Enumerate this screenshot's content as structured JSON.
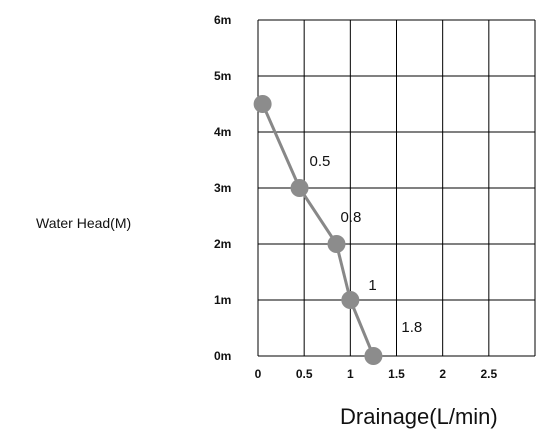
{
  "chart_data": {
    "type": "line",
    "title": "",
    "xlabel": "Drainage(L/min)",
    "ylabel": "Water Head(M)",
    "xlim": [
      0,
      3
    ],
    "ylim": [
      0,
      6
    ],
    "x_ticks": [
      "0",
      "0.5",
      "1",
      "1.5",
      "2",
      "2.5"
    ],
    "y_ticks": [
      "0m",
      "1m",
      "2m",
      "3m",
      "4m",
      "5m",
      "6m"
    ],
    "grid": true,
    "colors": {
      "line": "#888888",
      "marker": "#8c8c8c",
      "grid": "#000000"
    },
    "series": [
      {
        "x": [
          0.05,
          0.45,
          0.85,
          1.0,
          1.25
        ],
        "y": [
          4.5,
          3.0,
          2.0,
          1.0,
          0.0
        ]
      }
    ],
    "point_labels": [
      "",
      "0.5",
      "0.8",
      "1",
      "1.8"
    ]
  }
}
